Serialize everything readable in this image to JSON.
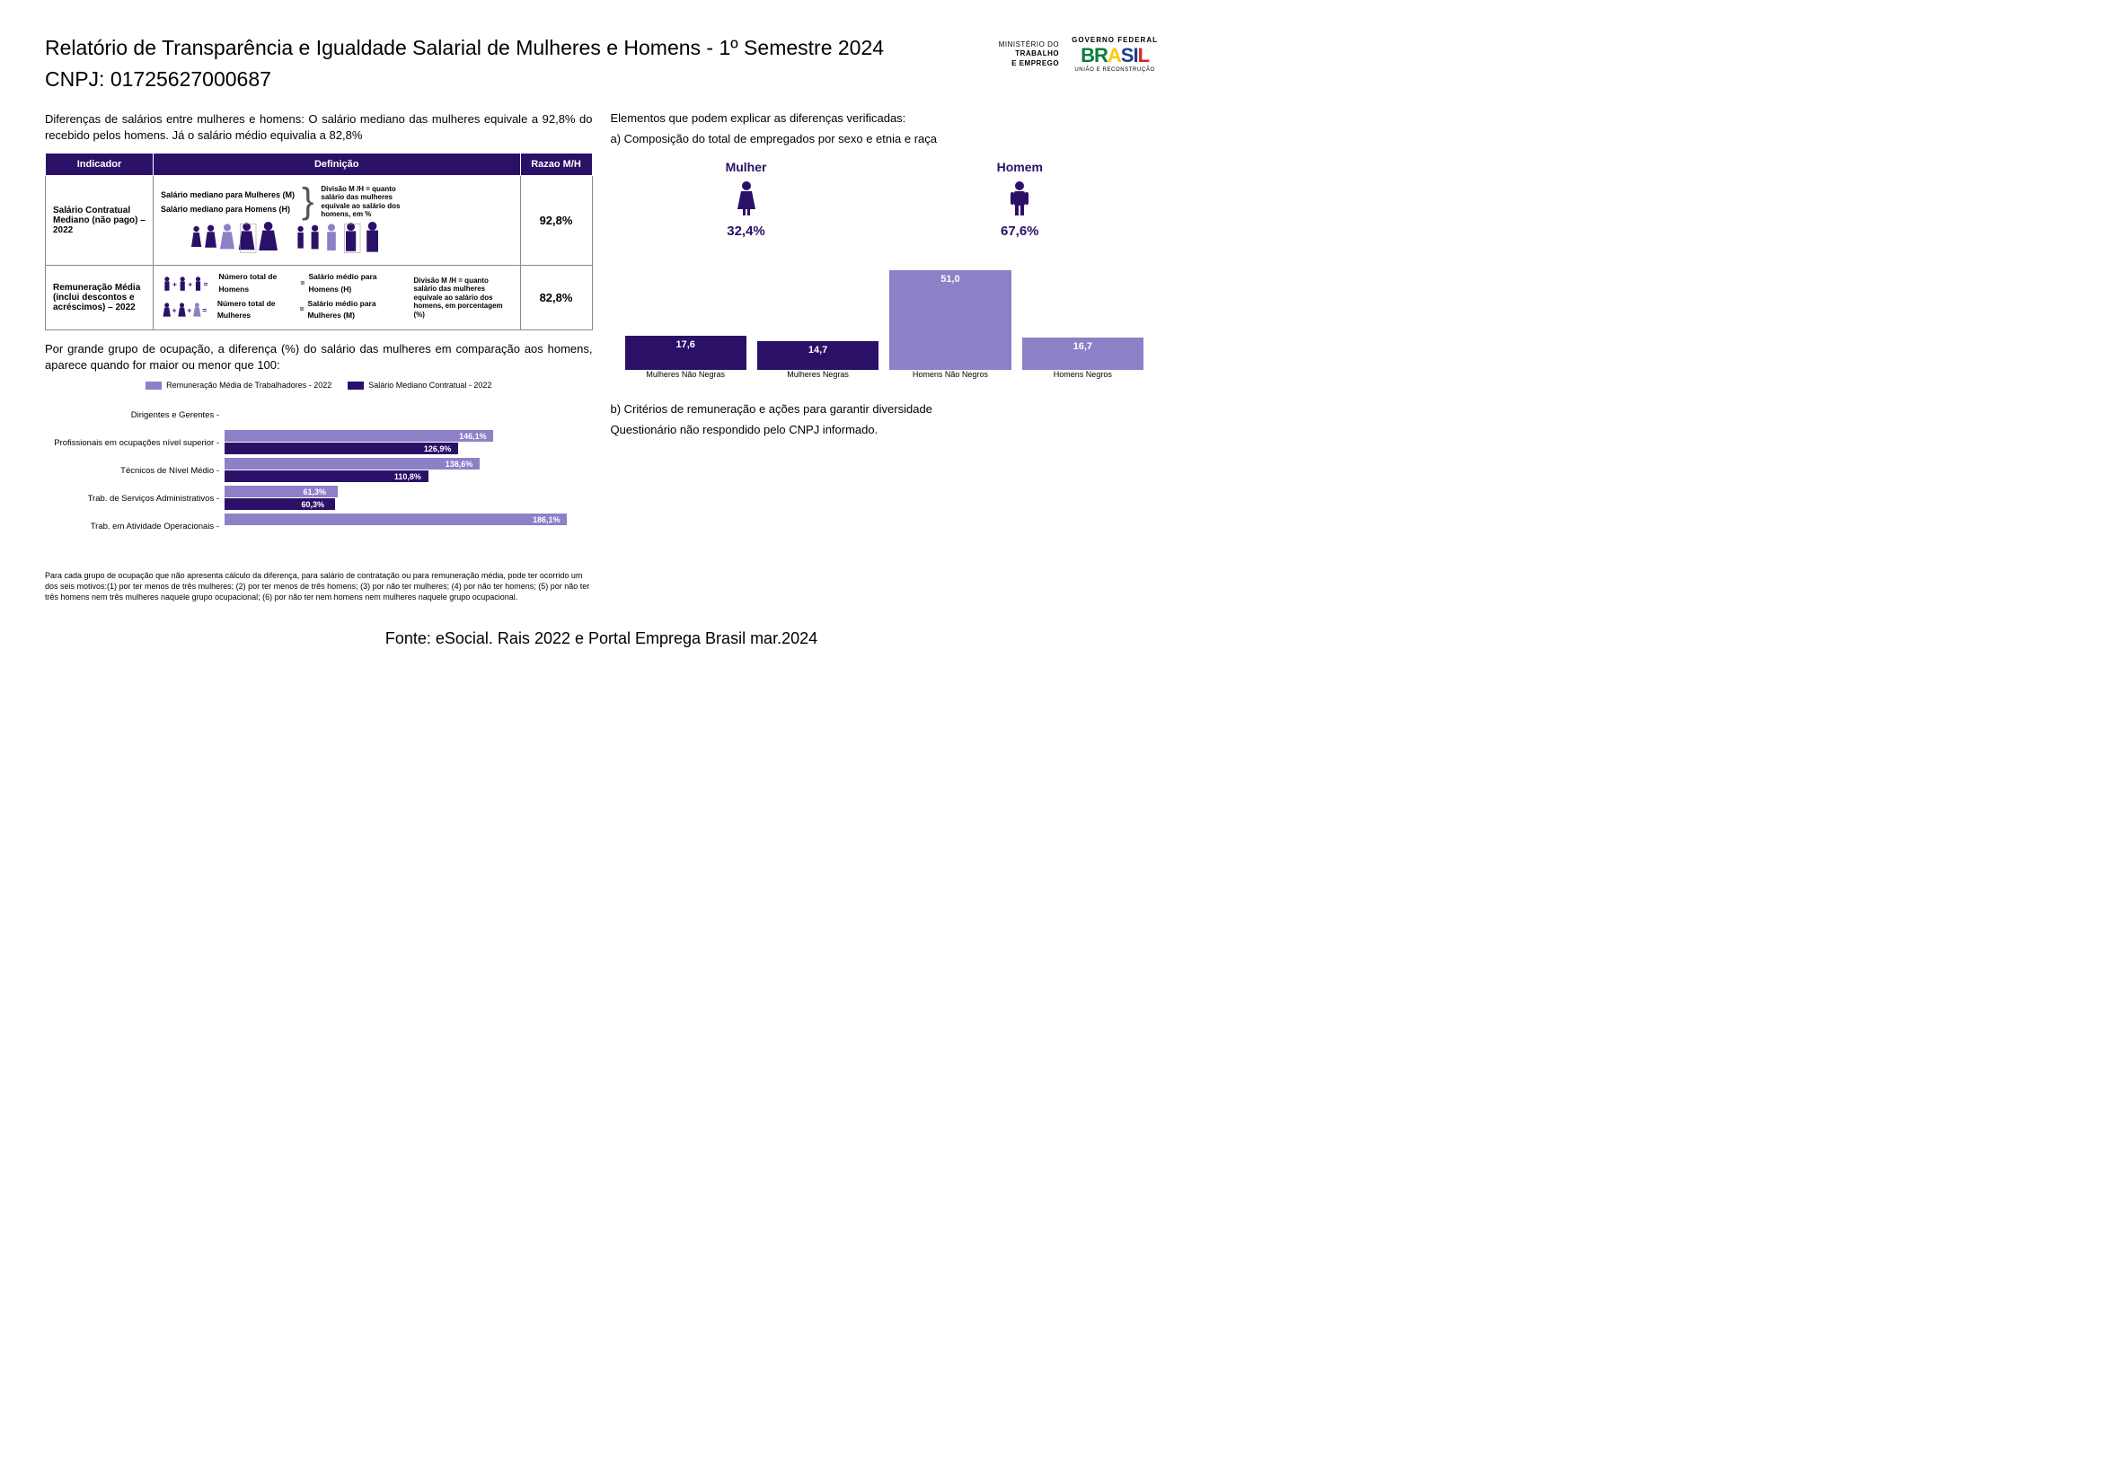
{
  "header": {
    "title": "Relatório de Transparência e Igualdade Salarial de Mulheres e Homens - 1º Semestre 2024",
    "cnpj": "CNPJ: 01725627000687",
    "ministry_l1": "MINISTÉRIO DO",
    "ministry_l2": "TRABALHO",
    "ministry_l3": "E EMPREGO",
    "gov_top": "GOVERNO FEDERAL",
    "gov_mid": "BRASIL",
    "gov_sub": "UNIÃO E RECONSTRUÇÃO"
  },
  "colors": {
    "dark_purple": "#2b1068",
    "light_purple": "#8d80c7",
    "black": "#000000"
  },
  "left": {
    "intro": "Diferenças de salários entre mulheres e homens: O salário mediano das mulheres equivale a 92,8% do recebido pelos homens. Já o salário médio equivalia a 82,8%",
    "table": {
      "head_indicador": "Indicador",
      "head_definicao": "Definição",
      "head_razao": "Razao M/H",
      "row1": {
        "indicador": "Salário Contratual Mediano (não pago) – 2022",
        "def_l1": "Salário mediano para Mulheres (M)",
        "def_l2": "Salário mediano para Homens (H)",
        "note": "Divisão M /H = quanto salário das mulheres equivale ao salário dos homens, em %",
        "ratio": "92,8%"
      },
      "row2": {
        "indicador": "Remuneração Média (inclui descontos e acréscimos) – 2022",
        "f1a": "Número total de Homens",
        "f1b": "Salário médio para Homens (H)",
        "f2a": "Número total de Mulheres",
        "f2b": "Salário médio para Mulheres (M)",
        "note": "Divisão M /H = quanto salário das mulheres equivale ao salário dos homens, em porcentagem (%)",
        "ratio": "82,8%"
      }
    },
    "occ_intro": "Por grande grupo de ocupação, a diferença (%) do salário das mulheres em comparação aos homens, aparece quando for maior ou menor que 100:",
    "legend": {
      "a": "Remuneração Média de Trabalhadores - 2022",
      "b": "Salário Mediano Contratual - 2022"
    },
    "occ_chart": {
      "max": 200,
      "rows": [
        {
          "label": "Dirigentes e Gerentes",
          "light": null,
          "dark": null
        },
        {
          "label": "Profissionais em ocupações nível superior",
          "light": 146.1,
          "light_txt": "146,1%",
          "dark": 126.9,
          "dark_txt": "126,9%"
        },
        {
          "label": "Técnicos de Nível Médio",
          "light": 138.6,
          "light_txt": "138,6%",
          "dark": 110.8,
          "dark_txt": "110,8%"
        },
        {
          "label": "Trab. de Serviços Administrativos",
          "light": 61.3,
          "light_txt": "61,3%",
          "dark": 60.3,
          "dark_txt": "60,3%"
        },
        {
          "label": "Trab. em Atividade Operacionais",
          "light": 186.1,
          "light_txt": "186,1%",
          "dark": null
        }
      ]
    },
    "footnote": "Para cada grupo de ocupação que não apresenta cálculo da diferença, para salário de contratação ou para remuneração média, pode ter ocorrido um dos seis motivos:(1) por ter menos de três mulheres; (2) por ter menos de três homens; (3) por não ter mulheres; (4) por não ter homens; (5) por não ter três homens nem três mulheres naquele grupo ocupacional; (6) por não ter nem homens nem mulheres naquele grupo ocupacional."
  },
  "right": {
    "title": "Elementos que podem explicar as diferenças verificadas:",
    "sub_a": "a) Composição do total de empregados por sexo e etnia e raça",
    "mulher_label": "Mulher",
    "mulher_pct": "32,4%",
    "homem_label": "Homem",
    "homem_pct": "67,6%",
    "comp_chart": {
      "max": 55,
      "bars": [
        {
          "label": "Mulheres Não Negras",
          "value": 17.6,
          "txt": "17,6",
          "color": "#2b1068"
        },
        {
          "label": "Mulheres Negras",
          "value": 14.7,
          "txt": "14,7",
          "color": "#2b1068"
        },
        {
          "label": "Homens Não Negros",
          "value": 51.0,
          "txt": "51,0",
          "color": "#8d80c7"
        },
        {
          "label": "Homens Negros",
          "value": 16.7,
          "txt": "16,7",
          "color": "#8d80c7"
        }
      ]
    },
    "sub_b": "b) Critérios de remuneração e ações para garantir diversidade",
    "sub_b_ans": "Questionário não respondido pelo CNPJ informado."
  },
  "source": "Fonte: eSocial. Rais 2022 e Portal Emprega Brasil mar.2024"
}
